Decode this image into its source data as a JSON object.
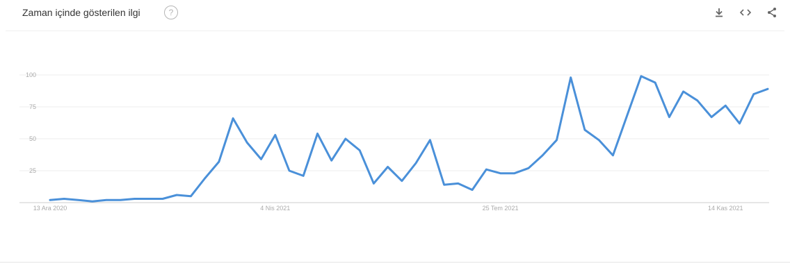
{
  "header": {
    "title": "Zaman içinde gösterilen ilgi",
    "help_glyph": "?",
    "icons": [
      "download-icon",
      "embed-icon",
      "share-icon"
    ]
  },
  "colors": {
    "line": "#4a90d9",
    "grid": "#ececec",
    "axis": "#cccccc",
    "label": "#aaaaaa"
  },
  "chart_data": {
    "type": "line",
    "title": "",
    "xlabel": "",
    "ylabel": "",
    "ylim": [
      0,
      100
    ],
    "yticks": [
      25,
      50,
      75,
      100
    ],
    "xtick_labels": [
      {
        "label": "13 Ara 2020",
        "index": 0
      },
      {
        "label": "4 Nis 2021",
        "index": 16
      },
      {
        "label": "25 Tem 2021",
        "index": 32
      },
      {
        "label": "14 Kas 2021",
        "index": 48
      }
    ],
    "series": [
      {
        "values": [
          2,
          3,
          2,
          1,
          2,
          2,
          3,
          3,
          3,
          6,
          5,
          19,
          32,
          66,
          47,
          34,
          53,
          25,
          21,
          54,
          33,
          50,
          41,
          15,
          28,
          17,
          31,
          49,
          14,
          15,
          10,
          26,
          23,
          23,
          27,
          37,
          49,
          98,
          57,
          49,
          37,
          68,
          99,
          94,
          67,
          87,
          80,
          67,
          76,
          62,
          85,
          89
        ]
      }
    ]
  }
}
